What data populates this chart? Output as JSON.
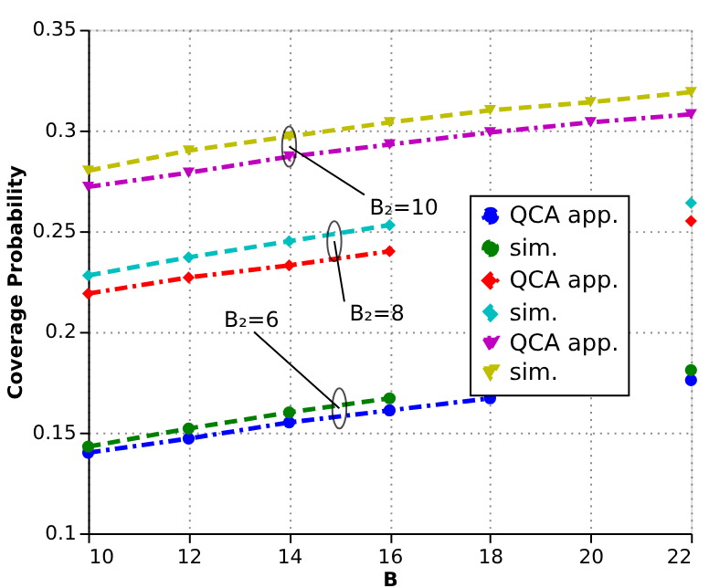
{
  "chart_data": {
    "type": "line",
    "xlabel": "B",
    "ylabel": "Coverage Probability",
    "x": [
      10,
      12,
      14,
      16,
      18,
      20,
      22
    ],
    "series": [
      {
        "name": "QCA app.",
        "color": "#0000ff",
        "marker": "circle",
        "line_style": "dashdot",
        "values": [
          0.14,
          0.147,
          0.155,
          0.161,
          0.167,
          null,
          0.176
        ]
      },
      {
        "name": "sim.",
        "color": "#008000",
        "marker": "circle",
        "line_style": "dashed",
        "values": [
          0.143,
          0.152,
          0.16,
          0.167,
          null,
          null,
          0.181
        ]
      },
      {
        "name": "QCA app.",
        "color": "#ff0000",
        "marker": "diamond",
        "line_style": "dashdot",
        "values": [
          0.219,
          0.227,
          0.233,
          0.24,
          null,
          null,
          0.255
        ]
      },
      {
        "name": "sim.",
        "color": "#00bfbf",
        "marker": "diamond",
        "line_style": "dashed",
        "values": [
          0.228,
          0.237,
          0.245,
          0.253,
          null,
          null,
          0.264
        ]
      },
      {
        "name": "QCA app.",
        "color": "#bf00bf",
        "marker": "triangle",
        "line_style": "dashdot",
        "values": [
          0.272,
          0.279,
          0.287,
          0.293,
          0.299,
          0.304,
          0.308
        ]
      },
      {
        "name": "sim.",
        "color": "#bfbf00",
        "marker": "triangle",
        "line_style": "dashed",
        "values": [
          0.28,
          0.29,
          0.297,
          0.304,
          0.31,
          0.314,
          0.319
        ]
      }
    ],
    "xlim": [
      10,
      22
    ],
    "xticks": [
      10,
      12,
      14,
      16,
      18,
      20,
      22
    ],
    "ylim": [
      0.1,
      0.35
    ],
    "yticks": [
      {
        "value": 0.1,
        "label": "0.1"
      },
      {
        "value": 0.15,
        "label": "0.15"
      },
      {
        "value": 0.2,
        "label": "0.2"
      },
      {
        "value": 0.25,
        "label": "0.25"
      },
      {
        "value": 0.3,
        "label": "0.3"
      },
      {
        "value": 0.35,
        "label": "0.35"
      }
    ],
    "grid": true,
    "legend": "right",
    "annotations": [
      {
        "text": "B₂=10",
        "x": 14,
        "y": 0.292
      },
      {
        "text": "B₂=8",
        "x": 14.9,
        "y": 0.245
      },
      {
        "text": "B₂=6",
        "x": 15,
        "y": 0.162
      }
    ]
  }
}
